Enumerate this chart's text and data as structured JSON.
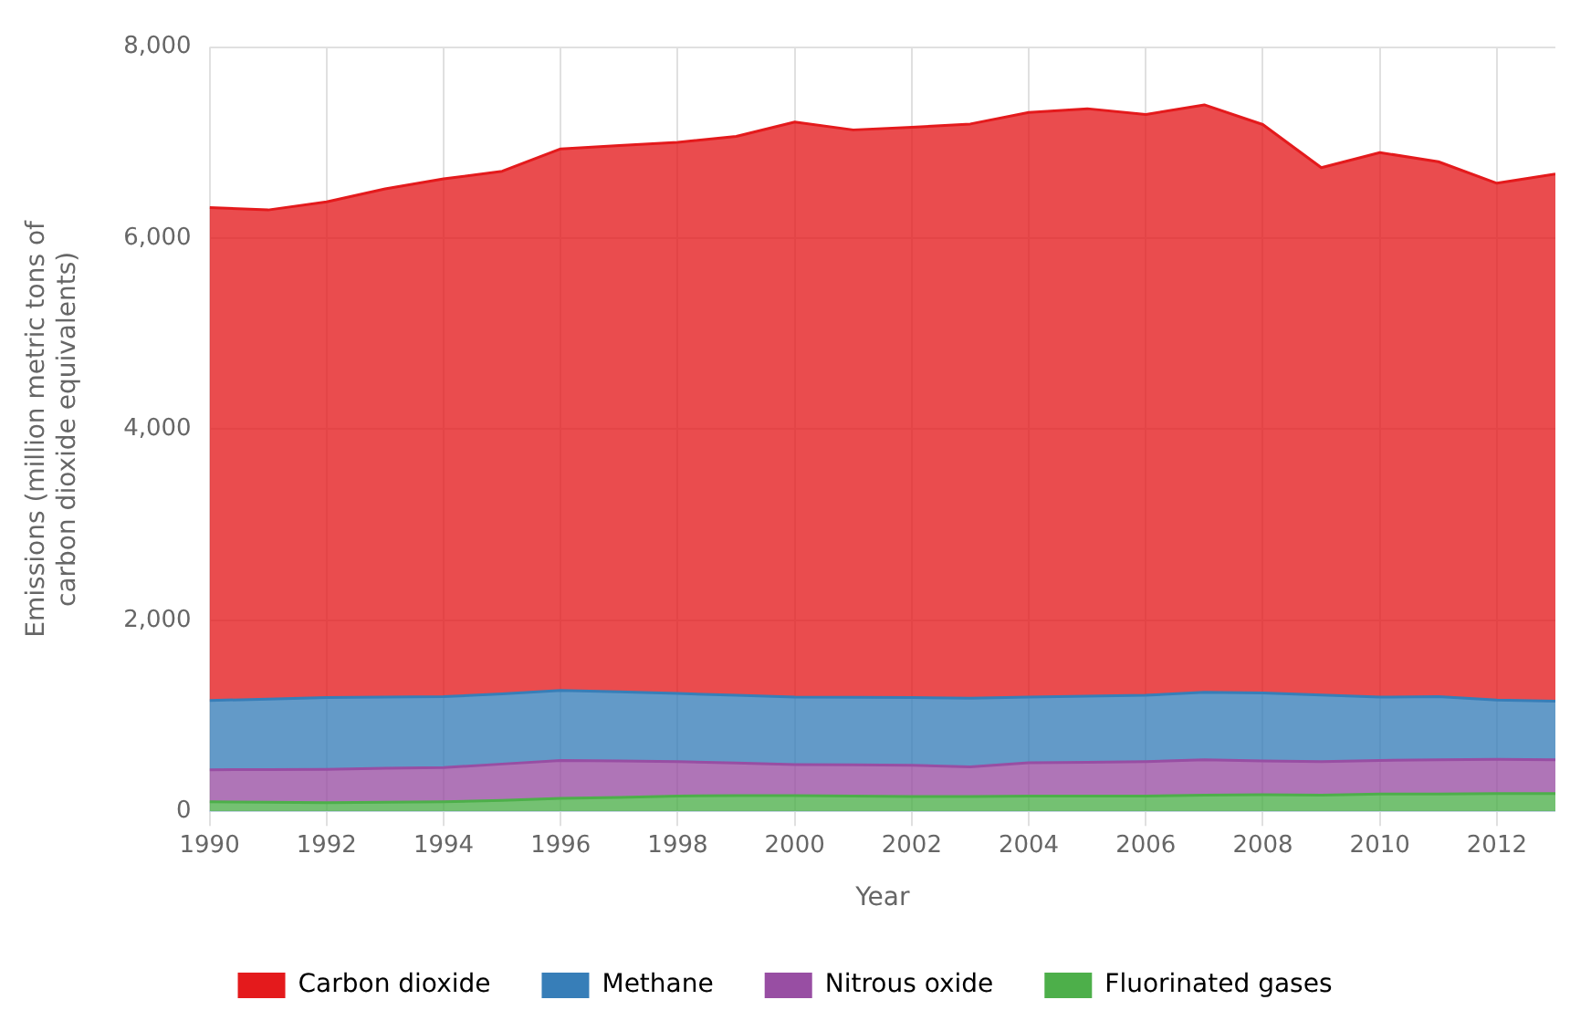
{
  "chart_data": {
    "type": "area",
    "stacked": true,
    "xlabel": "Year",
    "ylabel": "Emissions (million metric tons of\ncarbon dioxide equivalents)",
    "x": [
      1990,
      1991,
      1992,
      1993,
      1994,
      1995,
      1996,
      1997,
      1998,
      1999,
      2000,
      2001,
      2002,
      2003,
      2004,
      2005,
      2006,
      2007,
      2008,
      2009,
      2010,
      2011,
      2012,
      2013
    ],
    "series": [
      {
        "name": "Fluorinated gases",
        "color": "#4daf4a",
        "values": [
          100,
          95,
          90,
          95,
          100,
          115,
          135,
          145,
          160,
          165,
          165,
          160,
          155,
          155,
          160,
          160,
          160,
          170,
          175,
          170,
          180,
          180,
          185,
          185
        ]
      },
      {
        "name": "Nitrous oxide",
        "color": "#984ea3",
        "values": [
          335,
          342,
          350,
          355,
          358,
          380,
          398,
          382,
          360,
          340,
          325,
          326,
          328,
          310,
          348,
          354,
          360,
          369,
          352,
          350,
          353,
          360,
          360,
          354
        ]
      },
      {
        "name": "Methane",
        "color": "#377eb8",
        "values": [
          725,
          738,
          750,
          745,
          742,
          735,
          731,
          723,
          713,
          710,
          706,
          707,
          707,
          720,
          688,
          691,
          694,
          706,
          712,
          698,
          663,
          660,
          620,
          613
        ]
      },
      {
        "name": "Carbon dioxide",
        "color": "#e41a1c",
        "values": [
          5160,
          5120,
          5190,
          5320,
          5420,
          5470,
          5670,
          5720,
          5770,
          5850,
          6020,
          5940,
          5970,
          6010,
          6120,
          6150,
          6080,
          6150,
          5950,
          5520,
          5700,
          5600,
          5410,
          5520
        ]
      }
    ],
    "xlim": [
      1990,
      2013
    ],
    "xticks": [
      1990,
      1992,
      1994,
      1996,
      1998,
      2000,
      2002,
      2004,
      2006,
      2008,
      2010,
      2012
    ],
    "ylim": [
      0,
      8000
    ],
    "yticks": [
      {
        "value": 0,
        "label": "0"
      },
      {
        "value": 2000,
        "label": "2,000"
      },
      {
        "value": 4000,
        "label": "4,000"
      },
      {
        "value": 6000,
        "label": "6,000"
      },
      {
        "value": 8000,
        "label": "8,000"
      }
    ],
    "grid": true,
    "legend": "bottom"
  }
}
